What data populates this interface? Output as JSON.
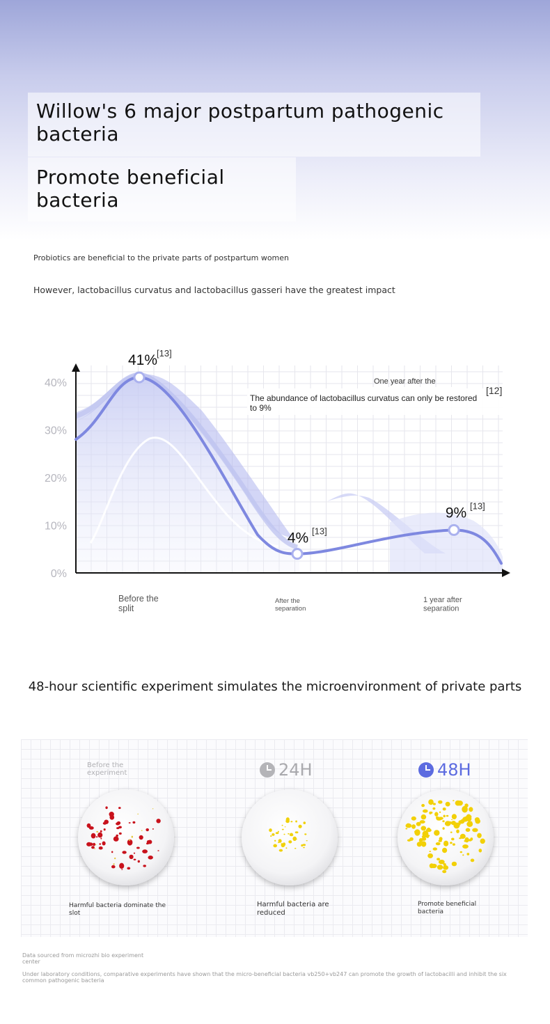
{
  "header": {
    "title": "Willow's 6 major postpartum pathogenic bacteria",
    "subtitle": "Promote beneficial bacteria"
  },
  "intro": {
    "line1": "Probiotics are beneficial to the private parts of postpartum women",
    "line2": "However, lactobacillus curvatus and lactobacillus gasseri have the greatest impact"
  },
  "chart_data": {
    "type": "line",
    "title": "",
    "xlabel": "",
    "ylabel": "",
    "ylim": [
      0,
      45
    ],
    "yticks": [
      "0%",
      "10%",
      "20%",
      "30%",
      "40%"
    ],
    "grid": true,
    "categories": [
      "Before the split",
      "After the separation",
      "1 year after separation"
    ],
    "series": [
      {
        "values": [
          41,
          4,
          9
        ]
      }
    ],
    "data_labels": [
      "41%",
      "4%",
      "9%"
    ],
    "references": [
      "[13]",
      "[13]",
      "[13]"
    ],
    "annotation": {
      "lead": "One year after the breakup",
      "text": "The abundance of lactobacillus curvatus can only be restored to 9%",
      "reference": "[12]"
    }
  },
  "experiment": {
    "title": "48-hour scientific experiment simulates the microenvironment of private parts",
    "columns": [
      {
        "head": "Before the experiment",
        "caption": "Harmful bacteria dominate the slot"
      },
      {
        "head": "24H",
        "caption": "Harmful bacteria are reduced",
        "clock_color": "#b4b4b8",
        "head_color": "#a9a9ad"
      },
      {
        "head": "48H",
        "caption": "Promote beneficial bacteria",
        "clock_color": "#5c6be0",
        "head_color": "#5c6be0"
      }
    ]
  },
  "footer": {
    "source": "Data sourced from microzhi bio experiment center",
    "note": "Under laboratory conditions, comparative experiments have shown that the micro-beneficial bacteria vb250+vb247 can promote the growth of lactobacilli and inhibit the six common pathogenic bacteria"
  }
}
